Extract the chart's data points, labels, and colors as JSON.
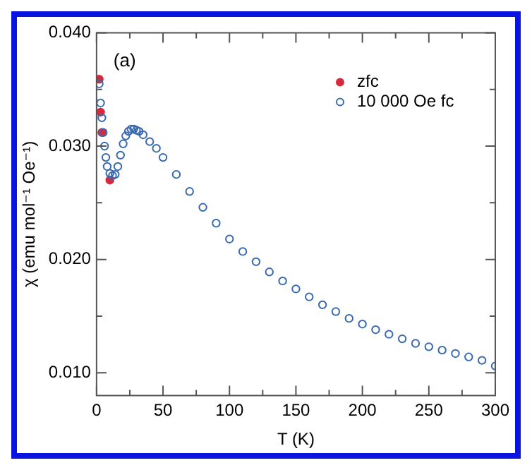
{
  "chart_data": {
    "type": "scatter",
    "xlabel": "T (K)",
    "ylabel": "χ (emu mol⁻¹ Oe⁻¹)",
    "annotations": [
      "(a)"
    ],
    "x": [
      2,
      3,
      4,
      5,
      6,
      7,
      8,
      10,
      12,
      14,
      16,
      18,
      20,
      22,
      24,
      26,
      28,
      30,
      32,
      35,
      40,
      45,
      50,
      60,
      70,
      80,
      90,
      100,
      110,
      120,
      130,
      140,
      150,
      160,
      170,
      180,
      190,
      200,
      210,
      220,
      230,
      240,
      250,
      260,
      270,
      280,
      290,
      300
    ],
    "series": [
      {
        "name": "zfc",
        "color": "#d62a3c",
        "marker": "circle",
        "values": [
          0.0359,
          0.033,
          0.0312,
          null,
          null,
          null,
          null,
          0.027,
          null,
          null,
          null,
          null,
          null,
          null,
          null,
          null,
          null,
          null,
          null,
          null,
          null,
          null,
          null,
          null,
          null,
          null,
          null,
          null,
          null,
          null,
          null,
          null,
          null,
          null,
          null,
          null,
          null,
          null,
          null,
          null,
          null,
          null,
          null,
          null,
          null,
          null,
          null,
          null
        ]
      },
      {
        "name": "10 000 Oe fc",
        "color": "#3a6ab0",
        "marker": "circle",
        "values": [
          0.0355,
          0.0338,
          0.0325,
          0.0312,
          0.03,
          0.029,
          0.0282,
          0.0276,
          0.0274,
          0.0275,
          0.0282,
          0.0292,
          0.0302,
          0.0309,
          0.0313,
          0.0315,
          0.0315,
          0.0314,
          0.0313,
          0.031,
          0.0304,
          0.0298,
          0.029,
          0.0275,
          0.026,
          0.0246,
          0.0232,
          0.0218,
          0.0207,
          0.0198,
          0.0189,
          0.0181,
          0.0174,
          0.0167,
          0.016,
          0.0154,
          0.0148,
          0.0143,
          0.0138,
          0.0134,
          0.013,
          0.0126,
          0.0123,
          0.012,
          0.0117,
          0.0114,
          0.0111,
          0.0106
        ]
      }
    ],
    "xlim": [
      0,
      300
    ],
    "xticks": [
      0,
      {
        "value": 25,
        "label": null
      },
      50,
      {
        "value": 75,
        "label": null
      },
      100,
      {
        "value": 125,
        "label": null
      },
      150,
      {
        "value": 175,
        "label": null
      },
      200,
      {
        "value": 225,
        "label": null
      },
      250,
      {
        "value": 275,
        "label": null
      },
      300
    ],
    "ylim": [
      0.008,
      0.04
    ],
    "yticks": [
      {
        "value": 0.01,
        "label": "0.010"
      },
      {
        "value": 0.015,
        "label": null
      },
      {
        "value": 0.02,
        "label": "0.020"
      },
      {
        "value": 0.025,
        "label": null
      },
      {
        "value": 0.03,
        "label": "0.030"
      },
      {
        "value": 0.035,
        "label": null
      },
      {
        "value": 0.04,
        "label": "0.040"
      }
    ],
    "grid": false,
    "legend": "top right"
  }
}
